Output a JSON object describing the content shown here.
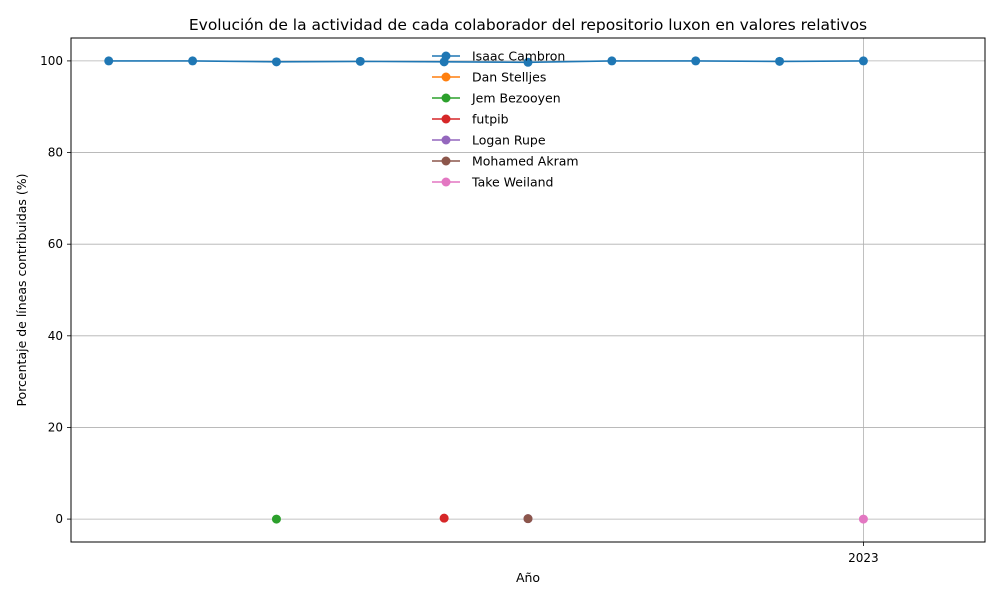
{
  "chart_data": {
    "type": "line",
    "title": "Evolución de la actividad de cada colaborador del repositorio luxon en valores relativos",
    "xlabel": "Año",
    "ylabel": "Porcentaje de líneas contribuidas (%)",
    "x": [
      2014,
      2015,
      2016,
      2017,
      2018,
      2019,
      2020,
      2021,
      2022,
      2023,
      2024
    ],
    "x_tick_labels": [
      {
        "x": 2023,
        "label": "2023"
      }
    ],
    "y_ticks": [
      0,
      20,
      40,
      60,
      80,
      100
    ],
    "xlim": [
      2013.55,
      2024.45
    ],
    "ylim": [
      -5,
      105
    ],
    "grid": true,
    "legend_position": "top-center",
    "series": [
      {
        "name": "Isaac Cambron",
        "color": "#1f77b4",
        "points": [
          [
            2014,
            100
          ],
          [
            2015,
            100
          ],
          [
            2016,
            99.8
          ],
          [
            2017,
            99.9
          ],
          [
            2018,
            99.8
          ],
          [
            2019,
            99.7
          ],
          [
            2020,
            100
          ],
          [
            2021,
            100
          ],
          [
            2022,
            99.9
          ],
          [
            2023,
            100
          ]
        ]
      },
      {
        "name": "Dan Stelljes",
        "color": "#ff7f0e",
        "points": []
      },
      {
        "name": "Jem Bezooyen",
        "color": "#2ca02c",
        "points": [
          [
            2016,
            0
          ]
        ]
      },
      {
        "name": "futpib",
        "color": "#d62728",
        "points": [
          [
            2018,
            0.2
          ]
        ]
      },
      {
        "name": "Logan Rupe",
        "color": "#9467bd",
        "points": [
          [
            2019,
            0.1
          ]
        ]
      },
      {
        "name": "Mohamed Akram",
        "color": "#8c564b",
        "points": [
          [
            2019,
            0.1
          ]
        ]
      },
      {
        "name": "Take Weiland",
        "color": "#e377c2",
        "points": [
          [
            2023,
            0
          ]
        ]
      }
    ]
  }
}
